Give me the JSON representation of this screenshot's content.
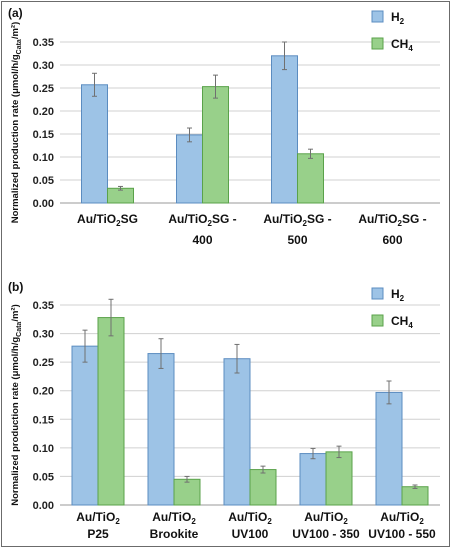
{
  "colors": {
    "h2": "#9dc3e6",
    "h2_stroke": "#5b8cc0",
    "ch4": "#98d08a",
    "ch4_stroke": "#5aa24a",
    "grid": "#d0d0d0",
    "err": "#707070"
  },
  "chart_data": [
    {
      "type": "bar",
      "panel_label": "(a)",
      "ylabel": "Normalized production rate (μmol/h/g",
      "ylabel_sub": "Cata",
      "ylabel_tail": "/m²)",
      "ylim": [
        0,
        0.35
      ],
      "yticks": [
        "0.00",
        "0.05",
        "0.10",
        "0.15",
        "0.20",
        "0.25",
        "0.30",
        "0.35"
      ],
      "grid": true,
      "legend_position": "top-right",
      "categories": [
        {
          "line1_a": "Au/TiO",
          "line1_sub": "2",
          "line1_b": "SG",
          "line2": ""
        },
        {
          "line1_a": "Au/TiO",
          "line1_sub": "2",
          "line1_b": "SG -",
          "line2": "400"
        },
        {
          "line1_a": "Au/TiO",
          "line1_sub": "2",
          "line1_b": "SG -",
          "line2": "500"
        },
        {
          "line1_a": "Au/TiO",
          "line1_sub": "2",
          "line1_b": "SG -",
          "line2": "600"
        }
      ],
      "series": [
        {
          "name_main": "H",
          "name_sub": "2",
          "values": [
            0.257,
            0.148,
            0.32,
            0
          ],
          "errors": [
            0.025,
            0.015,
            0.03,
            0
          ]
        },
        {
          "name_main": "CH",
          "name_sub": "4",
          "values": [
            0.032,
            0.253,
            0.107,
            0
          ],
          "errors": [
            0.004,
            0.025,
            0.01,
            0
          ]
        }
      ]
    },
    {
      "type": "bar",
      "panel_label": "(b)",
      "ylabel": "Normalized production rate (μmol/h/g",
      "ylabel_sub": "Cata",
      "ylabel_tail": "/m²)",
      "ylim": [
        0,
        0.35
      ],
      "yticks": [
        "0.00",
        "0.05",
        "0.10",
        "0.15",
        "0.20",
        "0.25",
        "0.30",
        "0.35"
      ],
      "grid": true,
      "legend_position": "top-right",
      "categories": [
        {
          "line1_a": "Au/TiO",
          "line1_sub": "2",
          "line1_b": "",
          "line2": "P25"
        },
        {
          "line1_a": "Au/TiO",
          "line1_sub": "2",
          "line1_b": "",
          "line2": "Brookite"
        },
        {
          "line1_a": "Au/TiO",
          "line1_sub": "2",
          "line1_b": "",
          "line2": "UV100"
        },
        {
          "line1_a": "Au/TiO",
          "line1_sub": "2",
          "line1_b": "",
          "line2": "UV100 - 350"
        },
        {
          "line1_a": "Au/TiO",
          "line1_sub": "2",
          "line1_b": "",
          "line2": "UV100 - 550"
        }
      ],
      "series": [
        {
          "name_main": "H",
          "name_sub": "2",
          "values": [
            0.278,
            0.265,
            0.256,
            0.09,
            0.197
          ],
          "errors": [
            0.028,
            0.026,
            0.025,
            0.009,
            0.02
          ]
        },
        {
          "name_main": "CH",
          "name_sub": "4",
          "values": [
            0.328,
            0.045,
            0.062,
            0.093,
            0.032
          ],
          "errors": [
            0.032,
            0.005,
            0.006,
            0.01,
            0.003
          ]
        }
      ]
    }
  ]
}
